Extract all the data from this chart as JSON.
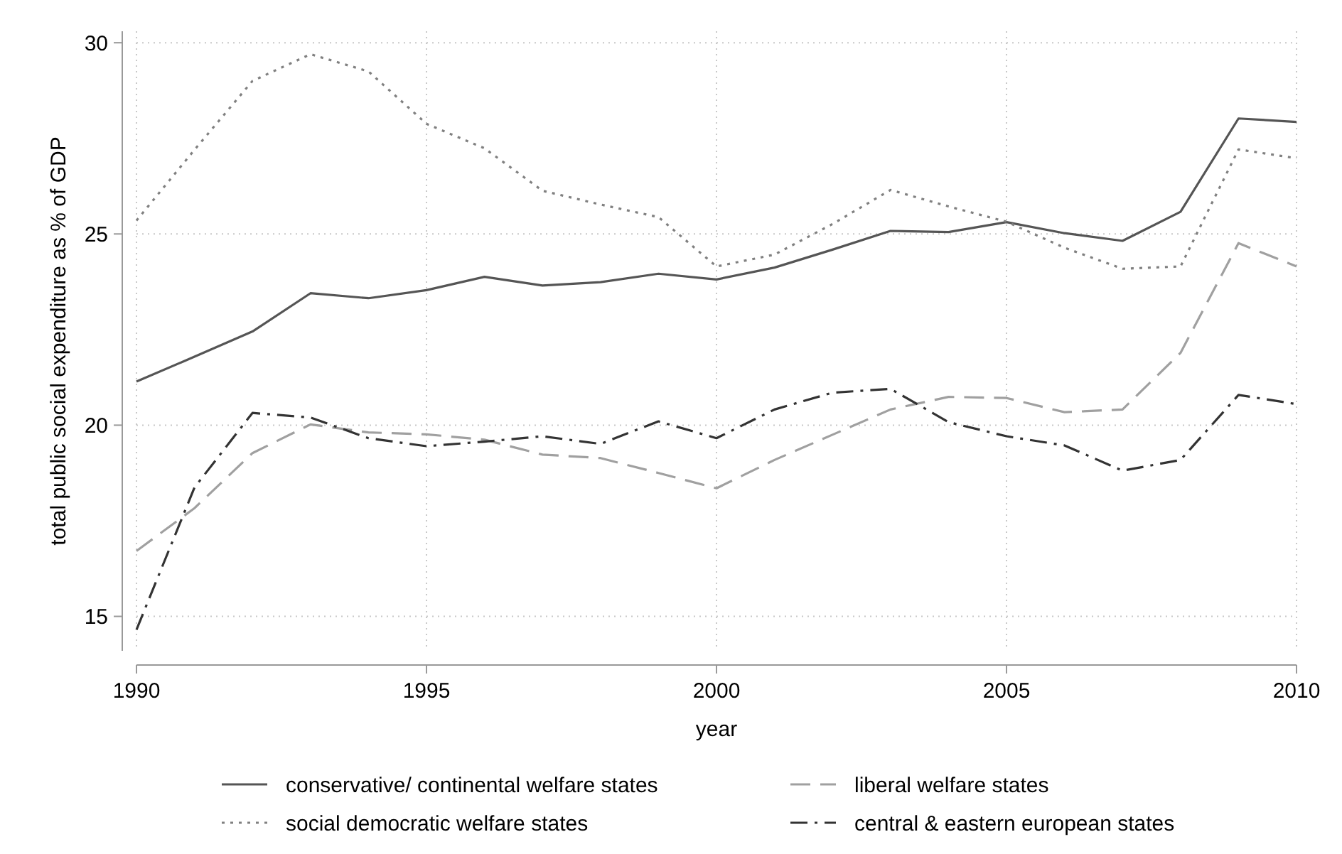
{
  "chart_data": {
    "type": "line",
    "xlabel": "year",
    "ylabel": "total public social expenditure as % of GDP",
    "x": [
      1990,
      1991,
      1992,
      1993,
      1994,
      1995,
      1996,
      1997,
      1998,
      1999,
      2000,
      2001,
      2002,
      2003,
      2004,
      2005,
      2006,
      2007,
      2008,
      2009,
      2010
    ],
    "xlim": [
      1990,
      2010
    ],
    "xticks": [
      1990,
      1995,
      2000,
      2005,
      2010
    ],
    "ylim": [
      14.1,
      30.3
    ],
    "yticks": [
      15,
      20,
      25,
      30
    ],
    "grid": true,
    "legend": "bottom",
    "marker": "none",
    "series": [
      {
        "name": "conservative/ continental welfare states",
        "color": "#555555",
        "line_style": "solid",
        "values": [
          21.14,
          21.79,
          22.45,
          23.45,
          23.32,
          23.53,
          23.88,
          23.65,
          23.74,
          23.96,
          23.81,
          24.12,
          24.59,
          25.08,
          25.05,
          25.31,
          25.02,
          24.82,
          25.58,
          28.02,
          27.93
        ]
      },
      {
        "name": "liberal welfare states",
        "color": "#a0a0a0",
        "line_style": "dashed",
        "values": [
          16.71,
          17.83,
          19.27,
          20.02,
          19.81,
          19.76,
          19.62,
          19.23,
          19.14,
          18.75,
          18.35,
          19.09,
          19.75,
          20.41,
          20.74,
          20.71,
          20.34,
          20.41,
          21.89,
          24.76,
          24.15
        ]
      },
      {
        "name": "social democratic welfare states",
        "color": "#808080",
        "line_style": "dotted",
        "values": [
          25.35,
          27.2,
          29.0,
          29.7,
          29.25,
          27.88,
          27.24,
          26.13,
          25.77,
          25.44,
          24.15,
          24.46,
          25.26,
          26.15,
          25.72,
          25.32,
          24.64,
          24.09,
          24.15,
          27.21,
          26.98
        ]
      },
      {
        "name": "central & eastern european states",
        "color": "#333333",
        "line_style": "dashdot",
        "values": [
          14.65,
          18.37,
          20.32,
          20.2,
          19.66,
          19.45,
          19.57,
          19.71,
          19.51,
          20.1,
          19.66,
          20.41,
          20.85,
          20.95,
          20.08,
          19.71,
          19.47,
          18.81,
          19.09,
          20.79,
          20.55
        ]
      }
    ]
  }
}
